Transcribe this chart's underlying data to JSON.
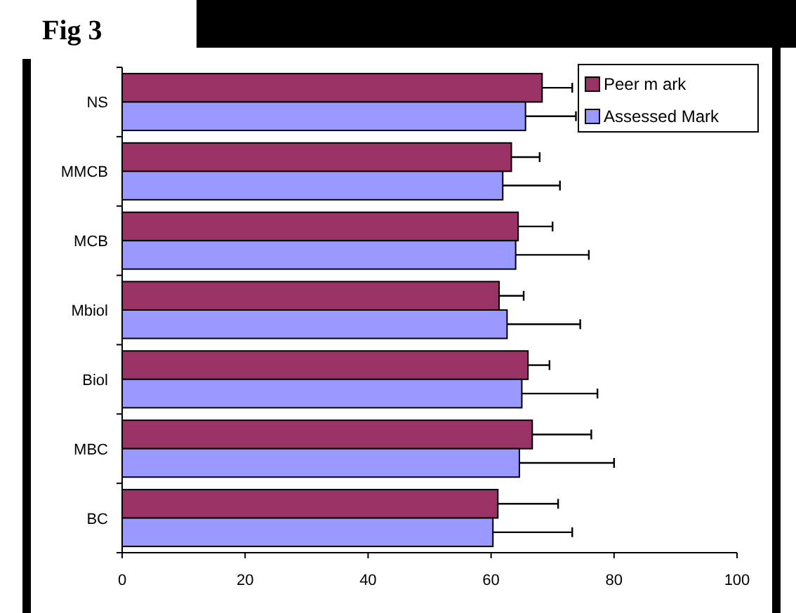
{
  "chart_data": {
    "type": "bar",
    "orientation": "horizontal",
    "title": "Fig 3",
    "categories": [
      "NS",
      "MMCB",
      "MCB",
      "Mbiol",
      "Biol",
      "MBC",
      "BC"
    ],
    "series": [
      {
        "name": "Peer m ark",
        "color": "#993366",
        "values": [
          68.3,
          63.3,
          64.4,
          61.3,
          66,
          66.7,
          61.1
        ],
        "errors": [
          [
            68.3,
            73.2
          ],
          [
            63.3,
            67.9
          ],
          [
            64.4,
            70
          ],
          [
            61.3,
            65.3
          ],
          [
            66,
            69.5
          ],
          [
            66.7,
            76.3
          ],
          [
            61.1,
            70.9
          ]
        ]
      },
      {
        "name": "Assessed Mark",
        "color": "#9999ff",
        "values": [
          65.6,
          61.9,
          64,
          62.6,
          65,
          64.6,
          60.3
        ],
        "errors": [
          [
            65.6,
            73.8
          ],
          [
            61.9,
            71.2
          ],
          [
            64,
            75.9
          ],
          [
            62.6,
            74.5
          ],
          [
            65,
            77.3
          ],
          [
            64.6,
            80
          ],
          [
            60.3,
            73.2
          ]
        ]
      }
    ],
    "xlim": [
      0,
      100
    ],
    "xticks": [
      0,
      20,
      40,
      60,
      80,
      100
    ],
    "grid": false,
    "legend": "top right"
  }
}
